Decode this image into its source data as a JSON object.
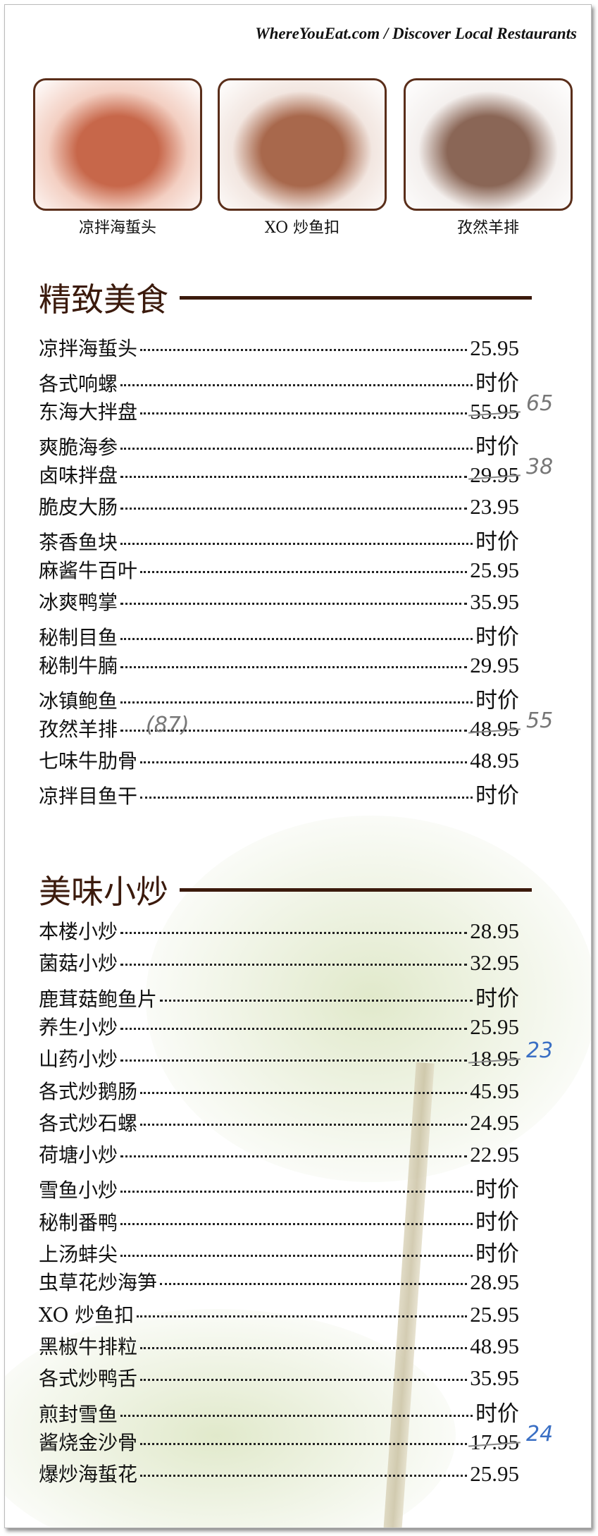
{
  "brand": "WhereYouEat.com / Discover Local Restaurants",
  "photos": [
    {
      "caption": "凉拌海蜇头",
      "colors": [
        "#f3cfc2",
        "#c7674a"
      ]
    },
    {
      "caption": "XO 炒鱼扣",
      "colors": [
        "#f2e6e0",
        "#a8684c"
      ]
    },
    {
      "caption": "孜然羊排",
      "colors": [
        "#f4f0ee",
        "#8a6656"
      ]
    }
  ],
  "sections": [
    {
      "title": "精致美食",
      "items": [
        {
          "name": "凉拌海蜇头",
          "price": "25.95"
        },
        {
          "name": "各式响螺",
          "price": "时价"
        },
        {
          "name": "东海大拌盘",
          "price": "55.95",
          "struck": true,
          "note": "65"
        },
        {
          "name": "爽脆海参",
          "price": "时价"
        },
        {
          "name": "卤味拌盘",
          "price": "29.95",
          "struck": true,
          "note": "38"
        },
        {
          "name": "脆皮大肠",
          "price": "23.95"
        },
        {
          "name": "茶香鱼块",
          "price": "时价"
        },
        {
          "name": "麻酱牛百叶",
          "price": "25.95"
        },
        {
          "name": "冰爽鸭掌",
          "price": "35.95"
        },
        {
          "name": "秘制目鱼",
          "price": "时价"
        },
        {
          "name": "秘制牛腩",
          "price": "29.95"
        },
        {
          "name": "冰镇鲍鱼",
          "price": "时价"
        },
        {
          "name": "孜然羊排",
          "price": "48.95",
          "struck": true,
          "note": "55",
          "inline_note": "(87)"
        },
        {
          "name": "七味牛肋骨",
          "price": "48.95"
        },
        {
          "name": "凉拌目鱼干",
          "price": "时价"
        }
      ]
    },
    {
      "title": "美味小炒",
      "items": [
        {
          "name": "本楼小炒",
          "price": "28.95"
        },
        {
          "name": "菌菇小炒",
          "price": "32.95"
        },
        {
          "name": "鹿茸菇鲍鱼片",
          "price": "时价"
        },
        {
          "name": "养生小炒",
          "price": "25.95"
        },
        {
          "name": "山药小炒",
          "price": "18.95",
          "struck": true,
          "note": "23",
          "note_color": "blue"
        },
        {
          "name": "各式炒鹅肠",
          "price": "45.95"
        },
        {
          "name": "各式炒石螺",
          "price": "24.95"
        },
        {
          "name": "荷塘小炒",
          "price": "22.95"
        },
        {
          "name": "雪鱼小炒",
          "price": "时价"
        },
        {
          "name": "秘制番鸭",
          "price": "时价"
        },
        {
          "name": "上汤蚌尖",
          "price": "时价"
        },
        {
          "name": "虫草花炒海笋",
          "price": "28.95"
        },
        {
          "name": "XO 炒鱼扣",
          "price": "25.95"
        },
        {
          "name": "黑椒牛排粒",
          "price": "48.95"
        },
        {
          "name": "各式炒鸭舌",
          "price": "35.95"
        },
        {
          "name": "煎封雪鱼",
          "price": "时价"
        },
        {
          "name": "酱烧金沙骨",
          "price": "17.95",
          "struck": true,
          "note": "24",
          "note_color": "blue"
        },
        {
          "name": "爆炒海蜇花",
          "price": "25.95"
        }
      ]
    }
  ]
}
